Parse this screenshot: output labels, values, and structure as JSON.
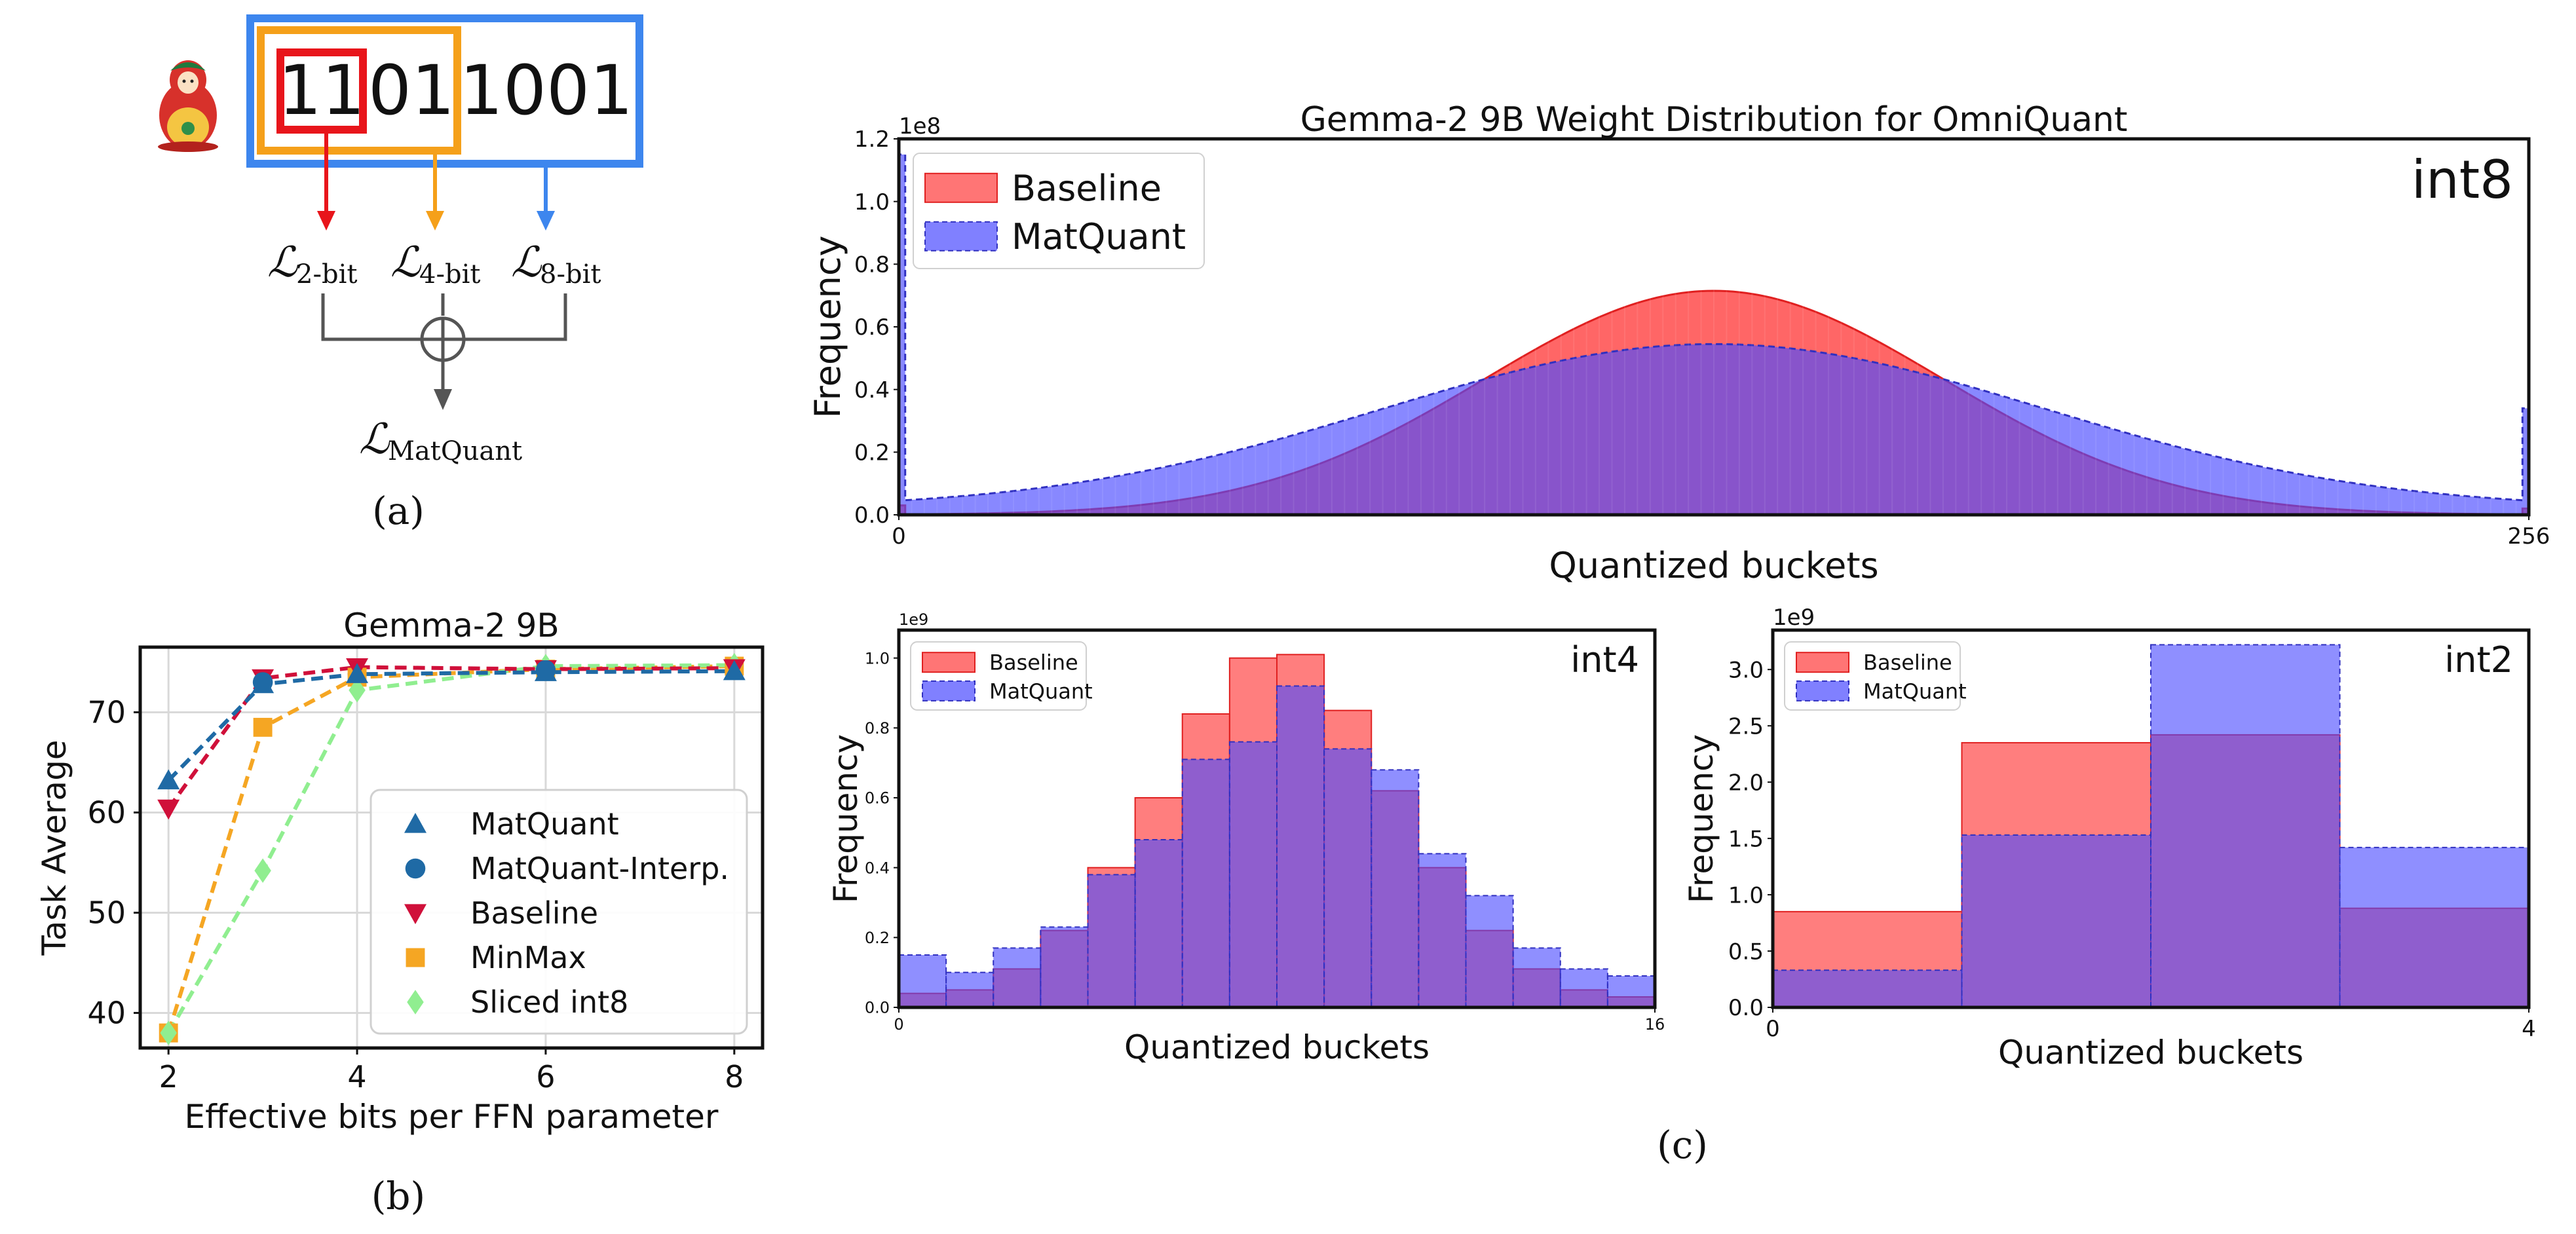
{
  "colors": {
    "baseline": "#ff3b3b",
    "matquant": "#4a4aff",
    "overlap": "#7a2fc0",
    "red_box": "#e8151b",
    "orange_box": "#f5a01a",
    "blue_box": "#3d86ee",
    "sum_gray": "#555555",
    "line_matquant": "#1f6aa5",
    "line_baseline": "#d0103a",
    "line_minmax": "#f5a623",
    "line_sliced": "#90ee90"
  },
  "panel_a": {
    "bits_red": "11",
    "bits_orange": "01",
    "bits_blue": "1001",
    "loss_2bit_sub": "2-bit",
    "loss_4bit_sub": "4-bit",
    "loss_8bit_sub": "8-bit",
    "loss_symbol": "ℒ",
    "loss_total_sub": "MatQuant",
    "caption": "(a)"
  },
  "panel_b_caption": "(b)",
  "panel_c_caption": "(c)",
  "chart_data": [
    {
      "id": "gemma-task-average",
      "type": "line",
      "title": "Gemma-2 9B",
      "xlabel": "Effective bits per FFN parameter",
      "ylabel": "Task Average",
      "x": [
        2,
        3,
        4,
        6,
        8
      ],
      "xlim": [
        1.7,
        8.3
      ],
      "ylim": [
        36.5,
        76.5
      ],
      "xticks": [
        2,
        4,
        6,
        8
      ],
      "yticks": [
        40,
        50,
        60,
        70
      ],
      "grid": true,
      "legend_position": "lower-right",
      "series": [
        {
          "name": "MatQuant",
          "marker": "triangle-up",
          "color": "#1f6aa5",
          "values": [
            63.2,
            72.8,
            73.8,
            74.0,
            74.1
          ]
        },
        {
          "name": "MatQuant-Interp.",
          "marker": "circle",
          "color": "#1f6aa5",
          "x": [
            3,
            6
          ],
          "values": [
            73.0,
            74.2
          ],
          "line": false
        },
        {
          "name": "Baseline",
          "marker": "triangle-down",
          "color": "#d0103a",
          "values": [
            60.4,
            73.4,
            74.5,
            74.3,
            74.4
          ]
        },
        {
          "name": "MinMax",
          "marker": "square",
          "color": "#f5a623",
          "values": [
            38.0,
            68.5,
            73.5,
            74.3,
            74.6
          ]
        },
        {
          "name": "Sliced int8",
          "marker": "diamond",
          "color": "#90ee90",
          "values": [
            38.0,
            54.2,
            72.2,
            74.6,
            74.7
          ]
        }
      ]
    },
    {
      "id": "int8-histogram",
      "type": "histogram",
      "title": "Gemma-2 9B Weight Distribution for OmniQuant",
      "tag": "int8",
      "xlabel": "Quantized buckets",
      "ylabel": "Frequency",
      "y_scale_label": "1e8",
      "xlim": [
        0,
        256
      ],
      "ylim": [
        0,
        1.2
      ],
      "xticks": [
        0,
        256
      ],
      "yticks": [
        "0.0",
        "0.2",
        "0.4",
        "0.6",
        "0.8",
        "1.0",
        "1.2"
      ],
      "legend": [
        "Baseline",
        "MatQuant"
      ],
      "series": [
        {
          "name": "Baseline",
          "description_units": "1e8",
          "gaussian": {
            "center": 128,
            "sigma": 36,
            "peak": 0.715,
            "floor": 0.0
          },
          "edge_first": 0.03,
          "edge_last": 0.02
        },
        {
          "name": "MatQuant",
          "description_units": "1e8",
          "gaussian": {
            "center": 128,
            "sigma": 52,
            "peak": 0.545,
            "floor": 0.02
          },
          "edge_first": 1.15,
          "edge_last": 0.34
        }
      ]
    },
    {
      "id": "int4-histogram",
      "type": "histogram",
      "tag": "int4",
      "xlabel": "Quantized buckets",
      "ylabel": "Frequency",
      "y_scale_label": "1e9",
      "xlim": [
        0,
        16
      ],
      "ylim": [
        0,
        1.08
      ],
      "xticks": [
        0,
        16
      ],
      "yticks": [
        "0.0",
        "0.2",
        "0.4",
        "0.6",
        "0.8",
        "1.0"
      ],
      "legend": [
        "Baseline",
        "MatQuant"
      ],
      "series": [
        {
          "name": "Baseline",
          "values": [
            0.04,
            0.05,
            0.11,
            0.22,
            0.4,
            0.6,
            0.84,
            1.0,
            1.01,
            0.85,
            0.62,
            0.4,
            0.22,
            0.11,
            0.05,
            0.03
          ]
        },
        {
          "name": "MatQuant",
          "values": [
            0.15,
            0.1,
            0.17,
            0.23,
            0.38,
            0.48,
            0.71,
            0.76,
            0.92,
            0.74,
            0.68,
            0.44,
            0.32,
            0.17,
            0.11,
            0.09
          ]
        }
      ]
    },
    {
      "id": "int2-histogram",
      "type": "histogram",
      "tag": "int2",
      "xlabel": "Quantized buckets",
      "ylabel": "Frequency",
      "y_scale_label": "1e9",
      "xlim": [
        0,
        4
      ],
      "ylim": [
        0,
        3.35
      ],
      "xticks": [
        0,
        4
      ],
      "yticks": [
        "0.0",
        "0.5",
        "1.0",
        "1.5",
        "2.0",
        "2.5",
        "3.0"
      ],
      "legend": [
        "Baseline",
        "MatQuant"
      ],
      "series": [
        {
          "name": "Baseline",
          "values": [
            0.85,
            2.35,
            2.42,
            0.88
          ]
        },
        {
          "name": "MatQuant",
          "values": [
            0.33,
            1.53,
            3.22,
            1.42
          ]
        }
      ]
    }
  ]
}
